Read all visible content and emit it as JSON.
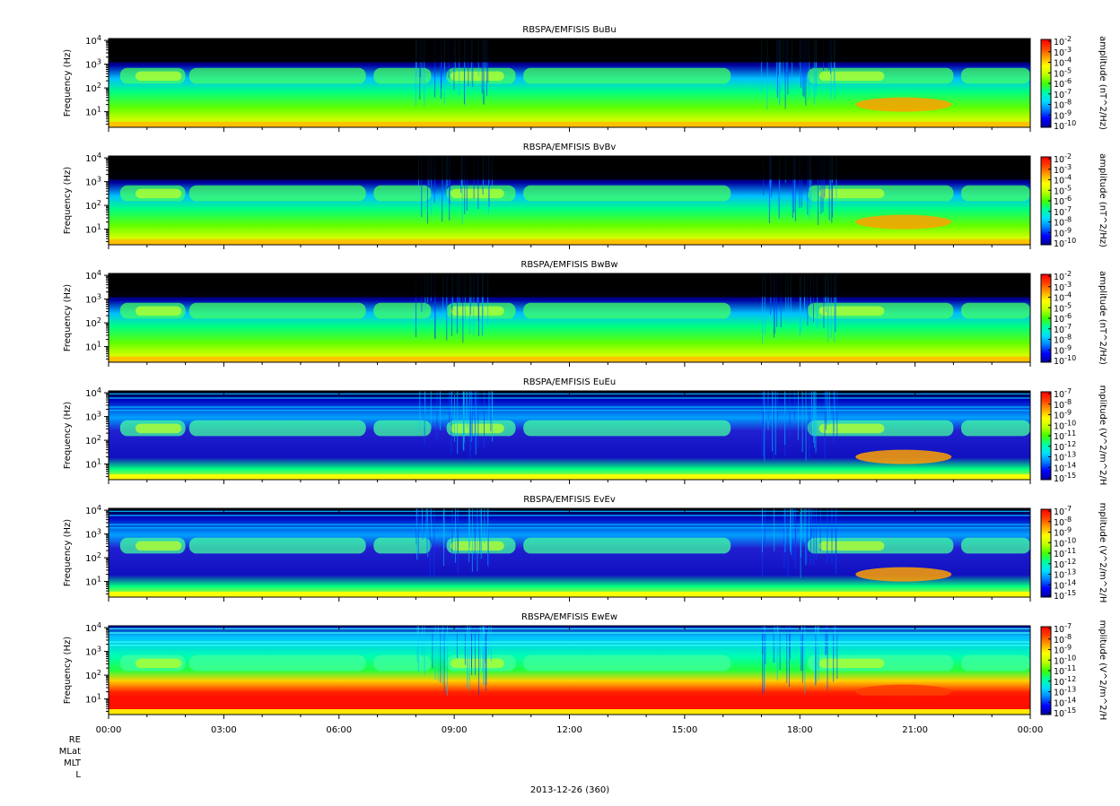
{
  "date_label": "2013-12-26 (360)",
  "ephemeris_labels": [
    "RE",
    "MLat",
    "MLT",
    "L"
  ],
  "colors": {
    "spectral_scale": [
      "#0000a0",
      "#0000ff",
      "#0080ff",
      "#00e0ff",
      "#00ffa0",
      "#40ff00",
      "#c0ff00",
      "#ffff00",
      "#ffa000",
      "#ff4000",
      "#ff0000"
    ],
    "background": "#000000"
  },
  "chart_data": [
    {
      "type": "heatmap",
      "title": "RBSPA/EMFISIS  BuBu",
      "ylabel": "Frequency (Hz)",
      "ylim": [
        2.2,
        12000
      ],
      "yscale": "log",
      "yticks": [
        "10^1",
        "10^2",
        "10^3",
        "10^4"
      ],
      "xticks": [
        "00:00",
        "03:00",
        "06:00",
        "09:00",
        "12:00",
        "15:00",
        "18:00",
        "21:00",
        "00:00"
      ],
      "xlim_hours": [
        0,
        24
      ],
      "colorbar_label": "amplitude (nT^2/Hz)",
      "colorbar_ticks": [
        "10^-2",
        "10^-3",
        "10^-4",
        "10^-5",
        "10^-6",
        "10^-7",
        "10^-8",
        "10^-9",
        "10^-10"
      ]
    },
    {
      "type": "heatmap",
      "title": "RBSPA/EMFISIS  BvBv",
      "ylabel": "Frequency (Hz)",
      "ylim": [
        2.2,
        12000
      ],
      "yscale": "log",
      "yticks": [
        "10^1",
        "10^2",
        "10^3",
        "10^4"
      ],
      "xticks": [
        "00:00",
        "03:00",
        "06:00",
        "09:00",
        "12:00",
        "15:00",
        "18:00",
        "21:00",
        "00:00"
      ],
      "xlim_hours": [
        0,
        24
      ],
      "colorbar_label": "amplitude (nT^2/Hz)",
      "colorbar_ticks": [
        "10^-2",
        "10^-3",
        "10^-4",
        "10^-5",
        "10^-6",
        "10^-7",
        "10^-8",
        "10^-9",
        "10^-10"
      ]
    },
    {
      "type": "heatmap",
      "title": "RBSPA/EMFISIS  BwBw",
      "ylabel": "Frequency (Hz)",
      "ylim": [
        2.2,
        12000
      ],
      "yscale": "log",
      "yticks": [
        "10^1",
        "10^2",
        "10^3",
        "10^4"
      ],
      "xticks": [
        "00:00",
        "03:00",
        "06:00",
        "09:00",
        "12:00",
        "15:00",
        "18:00",
        "21:00",
        "00:00"
      ],
      "xlim_hours": [
        0,
        24
      ],
      "colorbar_label": "amplitude (nT^2/Hz)",
      "colorbar_ticks": [
        "10^-2",
        "10^-3",
        "10^-4",
        "10^-5",
        "10^-6",
        "10^-7",
        "10^-8",
        "10^-9",
        "10^-10"
      ]
    },
    {
      "type": "heatmap",
      "title": "RBSPA/EMFISIS  EuEu",
      "ylabel": "Frequency (Hz)",
      "ylim": [
        2.2,
        12000
      ],
      "yscale": "log",
      "yticks": [
        "10^1",
        "10^2",
        "10^3",
        "10^4"
      ],
      "xticks": [
        "00:00",
        "03:00",
        "06:00",
        "09:00",
        "12:00",
        "15:00",
        "18:00",
        "21:00",
        "00:00"
      ],
      "xlim_hours": [
        0,
        24
      ],
      "colorbar_label": "mplitude (V^2/m^2/H",
      "colorbar_ticks": [
        "10^-7",
        "10^-8",
        "10^-9",
        "10^-10",
        "10^-11",
        "10^-12",
        "10^-13",
        "10^-14",
        "10^-15"
      ]
    },
    {
      "type": "heatmap",
      "title": "RBSPA/EMFISIS  EvEv",
      "ylabel": "Frequency (Hz)",
      "ylim": [
        2.2,
        12000
      ],
      "yscale": "log",
      "yticks": [
        "10^1",
        "10^2",
        "10^3",
        "10^4"
      ],
      "xticks": [
        "00:00",
        "03:00",
        "06:00",
        "09:00",
        "12:00",
        "15:00",
        "18:00",
        "21:00",
        "00:00"
      ],
      "xlim_hours": [
        0,
        24
      ],
      "colorbar_label": "mplitude (V^2/m^2/H",
      "colorbar_ticks": [
        "10^-7",
        "10^-8",
        "10^-9",
        "10^-10",
        "10^-11",
        "10^-12",
        "10^-13",
        "10^-14",
        "10^-15"
      ]
    },
    {
      "type": "heatmap",
      "title": "RBSPA/EMFISIS  EwEw",
      "ylabel": "Frequency (Hz)",
      "ylim": [
        2.2,
        12000
      ],
      "yscale": "log",
      "yticks": [
        "10^1",
        "10^2",
        "10^3",
        "10^4"
      ],
      "xticks": [
        "00:00",
        "03:00",
        "06:00",
        "09:00",
        "12:00",
        "15:00",
        "18:00",
        "21:00",
        "00:00"
      ],
      "xlim_hours": [
        0,
        24
      ],
      "colorbar_label": "mplitude (V^2/m^2/H",
      "colorbar_ticks": [
        "10^-7",
        "10^-8",
        "10^-9",
        "10^-10",
        "10^-11",
        "10^-12",
        "10^-13",
        "10^-14",
        "10^-15"
      ]
    }
  ]
}
